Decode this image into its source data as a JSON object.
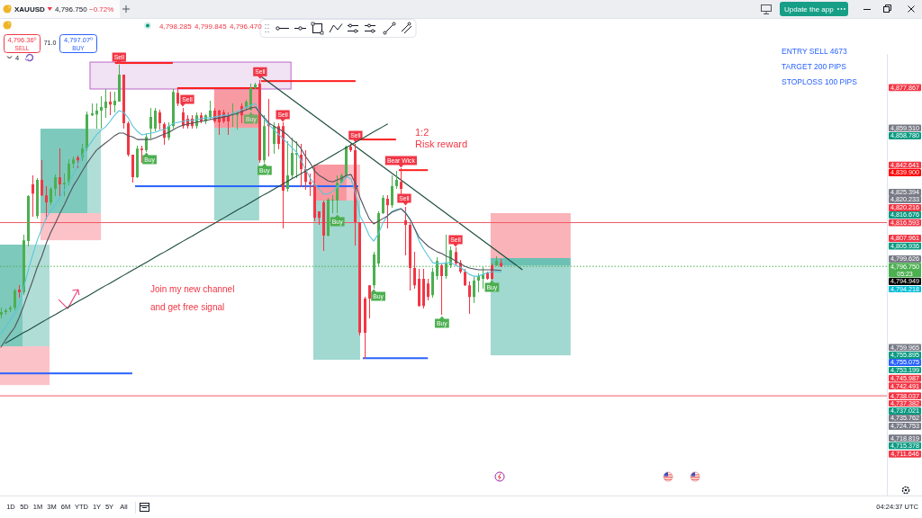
{
  "chart_data": {
    "type": "candlestick",
    "title": "XAUUSD",
    "categories": [
      null,
      null,
      null,
      null,
      null,
      null,
      null,
      null,
      null,
      null,
      null,
      null,
      null,
      null,
      null,
      null,
      null,
      null,
      null,
      null,
      null,
      null,
      null,
      null,
      null,
      null,
      null,
      null,
      null,
      null,
      null,
      null,
      null,
      null,
      null,
      null,
      null,
      null,
      null,
      null,
      null,
      null,
      null,
      null,
      null,
      null,
      null,
      null,
      null,
      null,
      null,
      null,
      null,
      null,
      null,
      null,
      null,
      null,
      null,
      null,
      null,
      null,
      null,
      null,
      null,
      null,
      null,
      null,
      null,
      null,
      null,
      null,
      null,
      null,
      null,
      null,
      null,
      null,
      null,
      null,
      null,
      null,
      null,
      null,
      null,
      null,
      null,
      null,
      null,
      null,
      null,
      null,
      null,
      null,
      null,
      null,
      null,
      null,
      null,
      null,
      null,
      null,
      null,
      null,
      null,
      null,
      null,
      null,
      null,
      null,
      null
    ],
    "ohlc": [
      [
        4774.8,
        4778.0,
        4773.5,
        4776.0
      ],
      [
        4776.0,
        4777.6,
        4774.8,
        4776.8
      ],
      [
        4777.2,
        4778.8,
        4776.4,
        4778.0
      ],
      [
        4778.0,
        4786.6,
        4777.2,
        4785.8
      ],
      [
        4786.2,
        4788.2,
        4782.9,
        4785.0
      ],
      [
        4785.0,
        4810.7,
        4784.1,
        4808.6
      ],
      [
        4808.2,
        4829.0,
        4806.2,
        4828.6
      ],
      [
        4833.9,
        4838.0,
        4819.6,
        4829.8
      ],
      [
        4819.6,
        4836.8,
        4818.8,
        4836.0
      ],
      [
        4836.0,
        4844.9,
        4829.0,
        4829.0
      ],
      [
        4829.0,
        4833.1,
        4818.4,
        4825.8
      ],
      [
        4825.8,
        4832.7,
        4824.9,
        4831.9
      ],
      [
        4831.9,
        4838.4,
        4829.0,
        4837.2
      ],
      [
        4837.2,
        4850.2,
        4829.0,
        4833.9
      ],
      [
        4833.9,
        4838.8,
        4829.0,
        4834.7
      ],
      [
        4834.7,
        4845.3,
        4833.9,
        4843.3
      ],
      [
        4843.3,
        4846.2,
        4841.3,
        4845.3
      ],
      [
        4846.2,
        4847.0,
        4841.3,
        4844.9
      ],
      [
        4846.2,
        4852.3,
        4844.9,
        4850.2
      ],
      [
        4850.2,
        4866.6,
        4849.4,
        4865.7
      ],
      [
        4865.3,
        4870.6,
        4865.3,
        4866.2
      ],
      [
        4865.7,
        4870.6,
        4859.6,
        4867.4
      ],
      [
        4867.4,
        4873.9,
        4859.6,
        4869.0
      ],
      [
        4868.6,
        4876.8,
        4864.5,
        4871.5
      ],
      [
        4871.5,
        4875.9,
        4865.7,
        4870.2
      ],
      [
        4869.8,
        4875.9,
        4866.6,
        4871.9
      ],
      [
        4871.5,
        4887.8,
        4871.5,
        4883.7
      ],
      [
        4883.7,
        4883.7,
        4859.6,
        4861.7
      ],
      [
        4861.7,
        4862.5,
        4847.0,
        4847.4
      ],
      [
        4847.4,
        4847.4,
        4835.1,
        4837.2
      ],
      [
        4837.2,
        4851.1,
        4837.2,
        4850.2
      ],
      [
        4850.2,
        4851.1,
        4844.1,
        4849.4
      ],
      [
        4849.4,
        4857.2,
        4849.0,
        4855.5
      ],
      [
        4859.2,
        4868.6,
        4855.1,
        4864.5
      ],
      [
        4859.2,
        4868.6,
        4858.4,
        4867.4
      ],
      [
        4866.6,
        4867.8,
        4859.2,
        4861.7
      ],
      [
        4861.3,
        4861.7,
        4852.3,
        4855.1
      ],
      [
        4855.1,
        4861.7,
        4854.3,
        4860.4
      ],
      [
        4860.4,
        4876.8,
        4859.6,
        4875.9
      ],
      [
        4875.5,
        4876.8,
        4869.8,
        4870.6
      ],
      [
        4866.6,
        4868.6,
        4859.6,
        4860.4
      ],
      [
        4863.7,
        4865.3,
        4859.6,
        4860.4
      ],
      [
        4863.7,
        4865.3,
        4859.6,
        4860.4
      ],
      [
        4860.4,
        4866.2,
        4859.6,
        4865.3
      ],
      [
        4865.3,
        4866.2,
        4861.7,
        4862.5
      ],
      [
        4862.5,
        4865.7,
        4861.3,
        4865.3
      ],
      [
        4864.5,
        4871.5,
        4863.7,
        4867.4
      ],
      [
        4867.4,
        4868.6,
        4861.7,
        4862.5
      ],
      [
        4867.4,
        4867.8,
        4856.4,
        4862.1
      ],
      [
        4866.6,
        4867.4,
        4861.7,
        4862.5
      ],
      [
        4865.3,
        4866.2,
        4856.4,
        4862.5
      ],
      [
        4865.3,
        4870.6,
        4860.4,
        4865.7
      ],
      [
        4865.3,
        4866.6,
        4859.2,
        4866.2
      ],
      [
        4869.4,
        4870.6,
        4861.7,
        4865.3
      ],
      [
        4868.6,
        4871.9,
        4867.8,
        4871.5
      ],
      [
        4867.8,
        4879.6,
        4867.4,
        4877.6
      ],
      [
        4877.6,
        4880.0,
        4877.2,
        4879.2
      ],
      [
        4879.6,
        4881.2,
        4844.1,
        4844.9
      ],
      [
        4844.9,
        4865.3,
        4844.1,
        4860.4
      ],
      [
        4861.3,
        4872.7,
        4847.0,
        4860.4
      ],
      [
        4852.3,
        4861.7,
        4848.2,
        4860.4
      ],
      [
        4860.4,
        4861.3,
        4850.2,
        4852.3
      ],
      [
        4860.4,
        4861.7,
        4814.3,
        4831.1
      ],
      [
        4831.9,
        4853.5,
        4830.7,
        4838.0
      ],
      [
        4838.0,
        4855.1,
        4837.2,
        4848.2
      ],
      [
        4847.4,
        4853.5,
        4837.2,
        4848.2
      ],
      [
        4847.4,
        4852.3,
        4833.1,
        4840.9
      ],
      [
        4840.9,
        4849.4,
        4831.9,
        4835.1
      ],
      [
        4835.1,
        4838.8,
        4829.0,
        4833.9
      ],
      [
        4833.9,
        4841.3,
        4817.6,
        4818.8
      ],
      [
        4821.7,
        4821.7,
        4815.6,
        4818.8
      ],
      [
        4825.8,
        4826.6,
        4804.1,
        4810.7
      ],
      [
        4810.7,
        4827.8,
        4810.3,
        4827.0
      ],
      [
        4826.6,
        4829.0,
        4820.9,
        4827.0
      ],
      [
        4826.6,
        4838.0,
        4820.9,
        4834.7
      ],
      [
        4834.7,
        4838.8,
        4834.7,
        4838.0
      ],
      [
        4838.0,
        4851.1,
        4837.2,
        4851.1
      ],
      [
        4851.1,
        4852.3,
        4849.0,
        4849.4
      ],
      [
        4849.4,
        4852.3,
        4806.6,
        4816.8
      ],
      [
        4816.8,
        4816.8,
        4765.8,
        4766.6
      ],
      [
        4782.1,
        4782.9,
        4755.1,
        4766.6
      ],
      [
        4788.2,
        4788.2,
        4773.5,
        4782.1
      ],
      [
        4788.2,
        4803.3,
        4787.0,
        4802.1
      ],
      [
        4798.0,
        4821.7,
        4797.2,
        4820.9
      ],
      [
        4820.9,
        4829.0,
        4820.5,
        4827.8
      ],
      [
        4827.4,
        4829.0,
        4814.3,
        4824.5
      ],
      [
        4824.5,
        4838.0,
        4823.7,
        4833.1
      ],
      [
        4833.1,
        4840.0,
        4832.3,
        4836.0
      ],
      [
        4835.1,
        4840.9,
        4829.8,
        4831.9
      ],
      [
        4817.6,
        4823.7,
        4802.1,
        4815.6
      ],
      [
        4815.6,
        4816.8,
        4786.2,
        4796.0
      ],
      [
        4796.0,
        4803.3,
        4787.0,
        4788.2
      ],
      [
        4791.1,
        4795.2,
        4778.8,
        4778.8
      ],
      [
        4791.1,
        4795.2,
        4778.0,
        4778.8
      ],
      [
        4789.0,
        4791.1,
        4781.7,
        4782.9
      ],
      [
        4783.7,
        4796.0,
        4782.9,
        4794.3
      ],
      [
        4792.3,
        4800.5,
        4791.1,
        4799.2
      ],
      [
        4797.2,
        4798.0,
        4774.8,
        4792.3
      ],
      [
        4792.3,
        4810.7,
        4791.5,
        4798.0
      ],
      [
        4797.2,
        4805.4,
        4796.4,
        4804.1
      ],
      [
        4803.3,
        4805.0,
        4797.6,
        4798.0
      ],
      [
        4798.4,
        4799.6,
        4793.9,
        4794.3
      ],
      [
        4794.3,
        4795.2,
        4788.2,
        4788.2
      ],
      [
        4788.2,
        4789.5,
        4775.6,
        4782.9
      ],
      [
        4782.9,
        4792.3,
        4780.5,
        4790.3
      ],
      [
        4790.3,
        4793.5,
        4785.4,
        4792.3
      ],
      [
        4791.1,
        4796.4,
        4787.0,
        4793.1
      ],
      [
        4793.9,
        4794.3,
        4791.1,
        4791.1
      ],
      [
        4797.2,
        4798.0,
        4791.1,
        4791.1
      ],
      [
        4797.2,
        4801.3,
        4797.2,
        4799.2
      ],
      [
        4798.285,
        4799.845,
        4796.47,
        4796.75
      ]
    ],
    "series": [
      {
        "type": "line",
        "color": "#1e4d40",
        "values": [
          null,
          4761.9,
          4763.1,
          4764.3,
          4765.5,
          4766.7,
          4767.8,
          4769.0,
          4770.2,
          4771.4,
          4772.6,
          4773.8,
          4774.9,
          4776.1,
          4777.3,
          4778.5,
          4779.7,
          4780.9,
          4782.0,
          4783.2,
          4784.4,
          4785.6,
          4786.8,
          4788.0,
          4789.1,
          4790.3,
          4791.5,
          4792.7,
          4793.9,
          4795.1,
          4796.2,
          4797.4,
          4798.6,
          4799.8,
          4801.0,
          4802.2,
          4803.3,
          4804.5,
          4805.7,
          4806.9,
          4808.1,
          4809.3,
          4810.4,
          4811.6,
          4812.8,
          4814.0,
          4815.2,
          4816.3,
          4817.5,
          4818.7,
          4819.9,
          4821.1,
          4822.3,
          4823.4,
          4824.6,
          4825.8,
          4827.0,
          4828.2,
          4829.4,
          4830.5,
          4831.7,
          4832.9,
          4834.1,
          4835.3,
          4836.5,
          4837.6,
          4838.8,
          4840.0,
          4841.2,
          4842.4,
          4843.6,
          4844.7,
          4845.9,
          4847.1,
          4848.3,
          4849.5,
          4850.7,
          4851.8,
          4853.0,
          4854.2,
          4855.4,
          4856.6,
          4857.8,
          4858.9,
          4860.1,
          4861.3,
          null,
          null,
          null,
          null,
          null,
          null,
          null,
          null,
          null,
          null,
          null,
          null,
          null,
          null,
          null,
          null,
          null,
          null,
          null,
          null,
          null,
          null,
          null,
          null,
          null
        ]
      },
      {
        "type": "line",
        "color": "#59c6dc",
        "values": [
          4766.2,
          4769.0,
          4772.3,
          4775.2,
          4779.2,
          4787.0,
          4794.8,
          4802.1,
          4808.6,
          4813.9,
          4818.8,
          4822.1,
          4824.9,
          4827.8,
          4831.5,
          4835.1,
          4838.8,
          4843.3,
          4847.4,
          4850.6,
          4853.5,
          4856.4,
          4858.4,
          4860.0,
          4862.5,
          4865.3,
          4867.4,
          4866.6,
          4864.1,
          4860.4,
          4858.0,
          4856.4,
          4856.8,
          4857.2,
          4857.6,
          4858.4,
          4858.8,
          4860.4,
          4861.7,
          4862.1,
          4862.5,
          4862.9,
          4862.9,
          4863.3,
          4863.7,
          4864.1,
          4864.1,
          4864.5,
          4864.9,
          4865.3,
          4865.3,
          4866.2,
          4867.0,
          4867.8,
          4869.0,
          4869.8,
          4870.6,
          4866.2,
          4863.3,
          4860.8,
          4858.8,
          4856.8,
          4854.7,
          4852.7,
          4850.6,
          4848.6,
          4844.9,
          4840.9,
          4836.8,
          4833.9,
          4831.9,
          4829.4,
          4829.8,
          4830.7,
          4832.7,
          4834.7,
          4837.6,
          4836.4,
          4829.8,
          4819.6,
          4815.6,
          4810.7,
          4808.2,
          4811.5,
          4816.4,
          4819.6,
          4821.7,
          4822.5,
          4822.9,
          4821.3,
          4818.0,
          4813.9,
          4808.2,
          4804.5,
          4801.3,
          4798.4,
          4798.0,
          4798.0,
          4798.4,
          4798.4,
          4797.2,
          4796.4,
          4794.8,
          4793.1,
          4792.3,
          4792.3,
          4793.1,
          4793.9,
          4794.3,
          4794.5,
          4794.2
        ]
      },
      {
        "type": "line",
        "color": "#50535e",
        "values": [
          4760.1,
          4763.3,
          4766.2,
          4769.0,
          4773.5,
          4778.8,
          4784.6,
          4790.3,
          4796.4,
          4801.3,
          4807.4,
          4812.3,
          4816.4,
          4820.9,
          4824.9,
          4829.4,
          4833.5,
          4836.8,
          4840.4,
          4843.7,
          4846.6,
          4849.4,
          4851.1,
          4852.7,
          4854.3,
          4856.0,
          4857.2,
          4857.2,
          4856.0,
          4855.5,
          4854.3,
          4854.3,
          4854.3,
          4854.3,
          4855.1,
          4856.0,
          4856.8,
          4857.6,
          4858.8,
          4860.0,
          4860.8,
          4861.3,
          4861.7,
          4862.1,
          4862.5,
          4862.9,
          4863.3,
          4863.7,
          4864.1,
          4864.5,
          4864.9,
          4865.7,
          4866.2,
          4867.0,
          4867.8,
          4868.6,
          4869.0,
          4866.2,
          4864.1,
          4861.7,
          4860.4,
          4859.2,
          4858.0,
          4856.4,
          4854.3,
          4852.7,
          4850.2,
          4846.6,
          4843.7,
          4840.0,
          4838.0,
          4836.8,
          4835.5,
          4835.1,
          4836.0,
          4836.8,
          4838.0,
          4838.4,
          4834.3,
          4827.8,
          4822.9,
          4818.4,
          4816.0,
          4817.2,
          4818.4,
          4819.6,
          4821.3,
          4822.1,
          4822.9,
          4820.9,
          4818.0,
          4813.9,
          4809.8,
          4807.8,
          4805.8,
          4804.5,
          4803.3,
          4802.5,
          4801.3,
          4800.5,
          4799.2,
          4798.0,
          4796.8,
          4796.0,
          4795.6,
          4795.2,
          4795.2,
          4795.2,
          4795.2,
          4795.1,
          4794.9
        ]
      }
    ],
    "ylim": [
      4692.8,
      4893.1
    ],
    "yticks": [
      {
        "value": 4877.867,
        "label": "4,877.867"
      },
      {
        "value": 4859.51,
        "label": "4,859.510"
      },
      {
        "value": 4842.641,
        "label": "4,842.641"
      },
      {
        "value": 4816.593,
        "label": "4,816.593"
      },
      {
        "value": 4805.936,
        "label": "4,805.936"
      },
      {
        "value": 4796.75,
        "label": "4,796.750"
      },
      {
        "value": 4759.965,
        "label": "4,759.965"
      },
      {
        "value": 4745.987,
        "label": "4,745.987"
      },
      {
        "value": 4742.491,
        "label": "4,742.491"
      },
      {
        "value": 4738.037,
        "label": "4,738.037"
      },
      {
        "value": 4718.819,
        "label": "4,718.819"
      },
      {
        "value": 4715.378,
        "label": "4,715.378"
      },
      {
        "value": 4711.646,
        "label": "4,711.646"
      }
    ],
    "tick_labels": "y",
    "ref_lines": [
      {
        "axis": "y",
        "value": 4816.593,
        "color": "#f05a63"
      },
      {
        "axis": "y",
        "value": 4738.037,
        "color": "#f05a63"
      },
      {
        "axis": "y",
        "value": 4796.75,
        "color": "#4caf50",
        "line_style": "dotted"
      }
    ],
    "annotations": [
      {
        "text": "Sell",
        "y": 4887.8
      },
      {
        "text": "Sell",
        "y": 4868.6
      },
      {
        "text": "Sell",
        "y": 4881.2
      },
      {
        "text": "Sell",
        "y": 4861.7
      },
      {
        "text": "Sell",
        "y": 4852.3
      },
      {
        "text": "Bear Wick",
        "y": 4840.9
      },
      {
        "text": "Sell",
        "y": 4823.7
      },
      {
        "text": "Sell",
        "y": 4805.0
      },
      {
        "text": "Buy",
        "y": 4849.0
      },
      {
        "text": "Buy",
        "y": 4867.4
      },
      {
        "text": "Buy",
        "y": 4844.1
      },
      {
        "text": "Buy",
        "y": 4820.9
      },
      {
        "text": "Buy",
        "y": 4787.0
      },
      {
        "text": "Buy",
        "y": 4774.8
      },
      {
        "text": "Buy",
        "y": 4791.1
      },
      "1:2",
      "Risk reward",
      "Join my new channel",
      "and get free signal",
      "ENTRY SELL 4673",
      "TARGET 200 PIPS",
      "STOPLOSS 100 PIPS",
      "4,796.750",
      "−0.72%",
      "4,798.285",
      "4,799.845",
      "4,796.470",
      "4,796.36⁰",
      "SELL",
      "71.0",
      "4,797.07⁰",
      "BUY",
      "4",
      "Update the app",
      "1D",
      "5D",
      "1M",
      "3M",
      "6M",
      "YTD",
      "1Y",
      "5Y",
      "All",
      "04:24:37 UTC",
      "05:23",
      "4,858.780",
      "4,839.900",
      "4,825.394",
      "4,820.233",
      "4,820.216",
      "4,816.676",
      "4,807.961",
      "4,799.626",
      "4,794.949",
      "4,794.218",
      "4,755.895",
      "4,755.075",
      "4,753.199",
      "4,737.382",
      "4,737.021",
      "4,735.762",
      "4,724.753"
    ]
  }
}
